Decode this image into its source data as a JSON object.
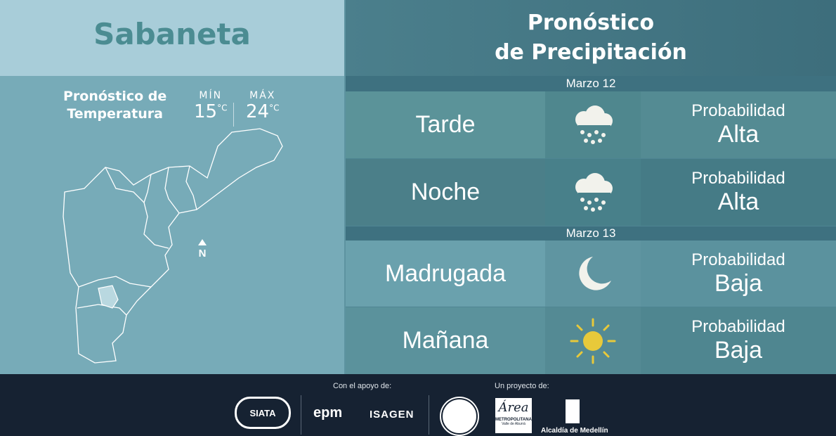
{
  "location": "Sabaneta",
  "temperature": {
    "title_line1": "Pronóstico de",
    "title_line2": "Temperatura",
    "min_label": "MÍN",
    "min_value": "15",
    "max_label": "MÁX",
    "max_value": "24",
    "unit": "°C"
  },
  "map": {
    "north_label": "N"
  },
  "precipitation": {
    "title_line1": "Pronóstico",
    "title_line2": "de Precipitación",
    "days": [
      {
        "date": "Marzo 12",
        "periods": [
          {
            "period": "Tarde",
            "icon": "rain-cloud-icon",
            "prob_label": "Probabilidad",
            "prob_value": "Alta"
          },
          {
            "period": "Noche",
            "icon": "rain-cloud-icon",
            "prob_label": "Probabilidad",
            "prob_value": "Alta"
          }
        ]
      },
      {
        "date": "Marzo 13",
        "periods": [
          {
            "period": "Madrugada",
            "icon": "moon-icon",
            "prob_label": "Probabilidad",
            "prob_value": "Baja"
          },
          {
            "period": "Mañana",
            "icon": "sun-icon",
            "prob_label": "Probabilidad",
            "prob_value": "Baja"
          }
        ]
      }
    ]
  },
  "footer": {
    "support_label": "Con el apoyo de:",
    "project_label": "Un proyecto de:",
    "logos": [
      "SIATA",
      "epm",
      "ISAGEN",
      "METROPOLITANA",
      "Valle de Aburrá",
      "Área",
      "Alcaldía de Medellín"
    ]
  },
  "colors": {
    "sun": "#e8c93a",
    "footer_bg": "#162232"
  }
}
